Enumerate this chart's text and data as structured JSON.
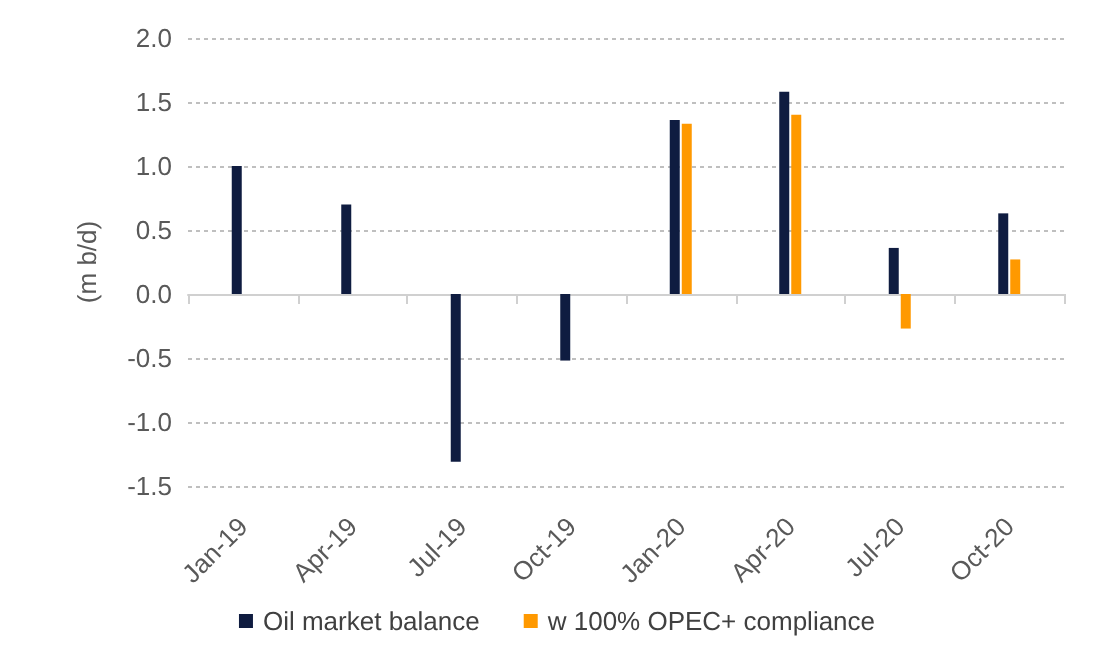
{
  "chart_data": {
    "type": "bar",
    "ylabel": "(m b/d)",
    "categories": [
      "Jan-19",
      "Apr-19",
      "Jul-19",
      "Oct-19",
      "Jan-20",
      "Apr-20",
      "Jul-20",
      "Oct-20"
    ],
    "series": [
      {
        "name": "Oil market balance",
        "color": "#0f1c40",
        "values": [
          1.0,
          0.7,
          -1.31,
          -0.52,
          1.36,
          1.58,
          0.36,
          0.63
        ]
      },
      {
        "name": "w 100% OPEC+ compliance",
        "color": "#ff9900",
        "values": [
          null,
          null,
          null,
          null,
          1.33,
          1.4,
          -0.27,
          0.27
        ]
      }
    ],
    "ylim": [
      -1.5,
      2.0
    ],
    "yticks": [
      -1.5,
      {
        "value": -1,
        "label": "-1.0"
      },
      -0.5,
      {
        "value": 0,
        "label": "0.0"
      },
      0.5,
      {
        "value": 1,
        "label": "1.0"
      },
      1.5,
      {
        "value": 2,
        "label": "2.0"
      }
    ],
    "grid": "y",
    "legend": "bottom"
  }
}
